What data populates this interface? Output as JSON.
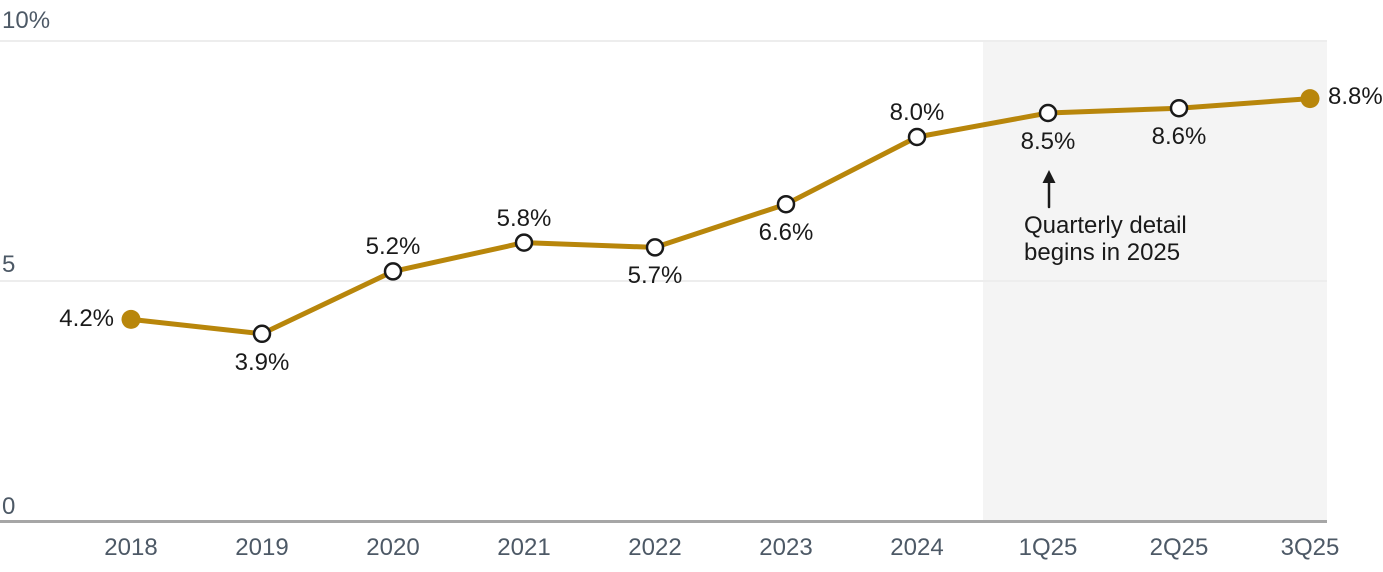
{
  "chart_data": {
    "type": "line",
    "title": "",
    "xlabel": "",
    "ylabel": "",
    "categories": [
      "2018",
      "2019",
      "2020",
      "2021",
      "2022",
      "2023",
      "2024",
      "1Q25",
      "2Q25",
      "3Q25"
    ],
    "values": [
      4.2,
      3.9,
      5.2,
      5.8,
      5.7,
      6.6,
      8.0,
      8.5,
      8.6,
      8.8
    ],
    "point_labels": [
      "4.2%",
      "3.9%",
      "5.2%",
      "5.8%",
      "5.7%",
      "6.6%",
      "8.0%",
      "8.5%",
      "8.6%",
      "8.8%"
    ],
    "label_side": [
      "left",
      "below",
      "above",
      "above",
      "below",
      "below",
      "above",
      "below",
      "below",
      "right"
    ],
    "marker_style": [
      "filled",
      "open",
      "open",
      "open",
      "open",
      "open",
      "open",
      "open",
      "open",
      "filled"
    ],
    "ylim": [
      0,
      10
    ],
    "yticks": [
      {
        "value": 0,
        "label": "0"
      },
      {
        "value": 5,
        "label": "5"
      },
      {
        "value": 10,
        "label": "10%"
      }
    ],
    "grid": true,
    "legend": "none",
    "line_color": "#B8860B",
    "marker_ring_color": "#1a1a1a",
    "marker_fill_open": "#ffffff",
    "highlight_region": {
      "covered_categories": [
        "1Q25",
        "2Q25",
        "3Q25"
      ],
      "color": "#f4f4f4"
    },
    "annotation": {
      "lines": [
        "Quarterly detail",
        "begins in 2025"
      ],
      "arrow": "up",
      "points_to": "8.5% (1Q25)"
    }
  },
  "colors": {
    "background": "#ffffff",
    "gridline": "#ededed",
    "axis_line": "#a6a6a6",
    "tick_label": "#4d5966",
    "data_label": "#1a1a1a"
  }
}
